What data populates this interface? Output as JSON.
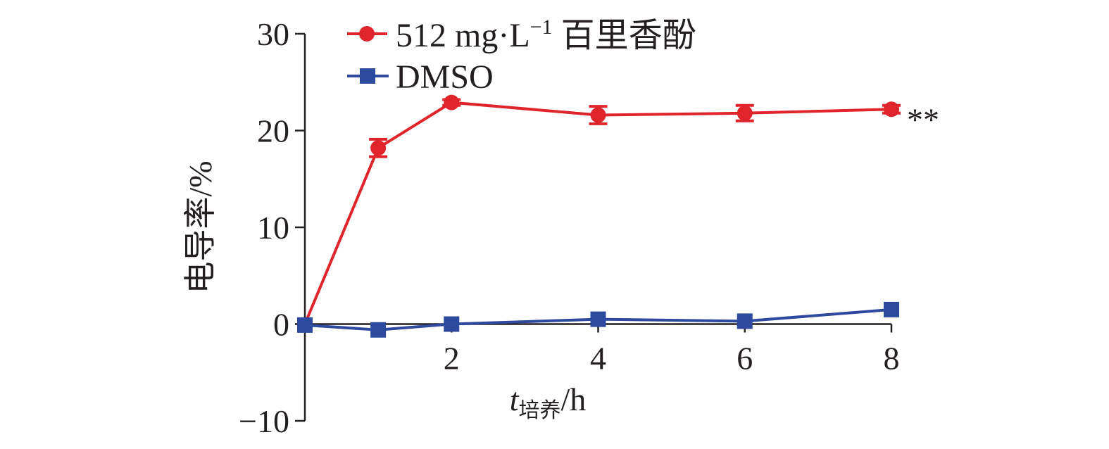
{
  "chart_data": {
    "type": "line",
    "title": "",
    "xlabel": "t培养/h",
    "xlabel_main": "t",
    "xlabel_sub": "培养",
    "xlabel_unit": "/h",
    "ylabel": "电导率/%",
    "xlim": [
      0,
      8
    ],
    "ylim": [
      -10,
      30
    ],
    "x_ticks": [
      2,
      4,
      6,
      8
    ],
    "x_tick_labels": [
      "2",
      "4",
      "6",
      "8"
    ],
    "y_ticks": [
      30,
      20,
      10,
      0,
      -10
    ],
    "y_tick_labels": [
      "30",
      "20",
      "10",
      "0",
      "−10"
    ],
    "grid": false,
    "legend_position": "top-left",
    "series": [
      {
        "name": "512 mg·L⁻¹ 百里香酚",
        "legend_main": "512 mg·L",
        "legend_sup": "−1",
        "legend_suffix": " 百里香酚",
        "color": "#e0242b",
        "marker": "circle",
        "x": [
          0,
          1,
          2,
          4,
          6,
          8
        ],
        "y": [
          0,
          18.2,
          22.9,
          21.6,
          21.8,
          22.2
        ],
        "error": [
          0,
          0.9,
          0.3,
          0.9,
          0.8,
          0.4
        ]
      },
      {
        "name": "DMSO",
        "color": "#2e4a9e",
        "marker": "square",
        "x": [
          0,
          1,
          2,
          4,
          6,
          8
        ],
        "y": [
          -0.1,
          -0.6,
          0.0,
          0.5,
          0.3,
          1.5
        ],
        "error": [
          0,
          0,
          0,
          0,
          0,
          0
        ]
      }
    ],
    "annotations": [
      {
        "text": "**",
        "x": 8,
        "y": 22.2
      }
    ]
  }
}
